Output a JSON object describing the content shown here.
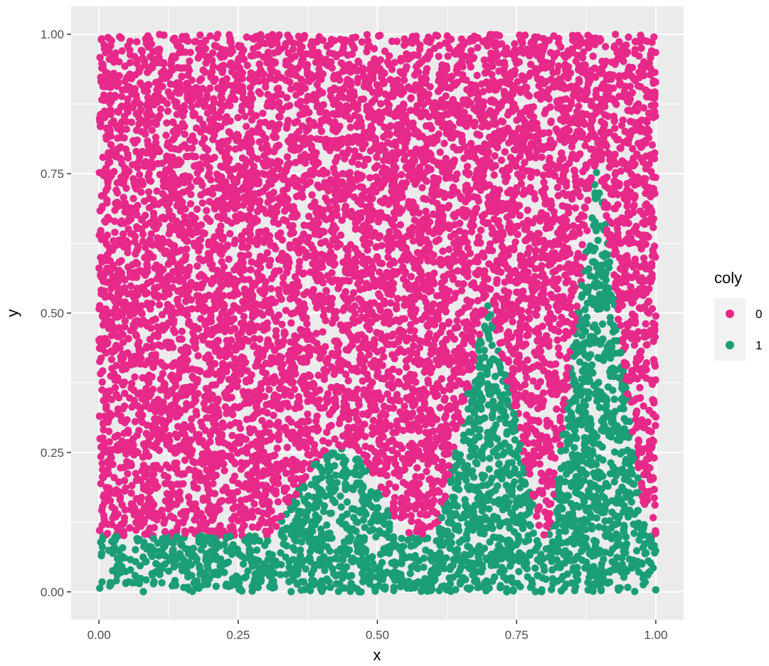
{
  "chart_data": {
    "type": "scatter",
    "title": "",
    "xlabel": "x",
    "ylabel": "y",
    "xlim": [
      -0.05,
      1.05
    ],
    "ylim": [
      -0.05,
      1.05
    ],
    "x_ticks": [
      0,
      0.25,
      0.5,
      0.75,
      1
    ],
    "x_tick_labels": [
      "0.00",
      "0.25",
      "0.50",
      "0.75",
      "1.00"
    ],
    "y_ticks": [
      0,
      0.25,
      0.5,
      0.75,
      1
    ],
    "y_tick_labels": [
      "0.00",
      "0.25",
      "0.50",
      "0.75",
      "1.00"
    ],
    "grid": true,
    "legend": {
      "title": "coly",
      "placement": "right",
      "entries": [
        {
          "label": "0",
          "color": "#E7298A"
        },
        {
          "label": "1",
          "color": "#1B9E77"
        }
      ]
    },
    "series": [
      {
        "name": "0",
        "color": "#E7298A",
        "region": "points with y above the green boundary curve (covers most of unit square)"
      },
      {
        "name": "1",
        "color": "#1B9E77",
        "region": "points below boundary: base band y<~0.10, hill peaking ~0.26 at x~0.43, peak ~0.53 at x~0.70, peak ~0.77 at x~0.89"
      }
    ],
    "approx_point_count": 10000,
    "background_color": "#EBEBEB"
  }
}
